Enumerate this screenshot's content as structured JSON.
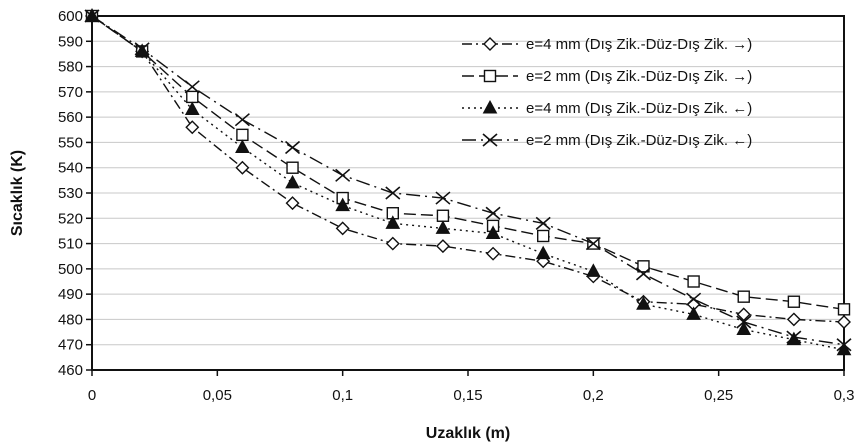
{
  "chart_data": {
    "type": "line",
    "title": "",
    "xlabel": "Uzaklık (m)",
    "ylabel": "Sıcaklık (K)",
    "xlim": [
      0,
      0.3
    ],
    "ylim": [
      460,
      600
    ],
    "x_ticks": [
      0,
      0.05,
      0.1,
      0.15,
      0.2,
      0.25,
      0.3
    ],
    "x_tick_labels": [
      "0",
      "0,05",
      "0,1",
      "0,15",
      "0,2",
      "0,25",
      "0,3"
    ],
    "y_ticks": [
      460,
      470,
      480,
      490,
      500,
      510,
      520,
      530,
      540,
      550,
      560,
      570,
      580,
      590,
      600
    ],
    "y_tick_labels": [
      "460",
      "470",
      "480",
      "490",
      "500",
      "510",
      "520",
      "530",
      "540",
      "550",
      "560",
      "570",
      "580",
      "590",
      "600"
    ],
    "grid": "horizontal",
    "legend_position": "top-right",
    "x": [
      0,
      0.02,
      0.04,
      0.06,
      0.08,
      0.1,
      0.12,
      0.14,
      0.16,
      0.18,
      0.2,
      0.22,
      0.24,
      0.26,
      0.28,
      0.3
    ],
    "series": [
      {
        "name": "e=4 mm (Dış Zik.-Düz-Dış Zik. →)",
        "marker": "diamond",
        "dash": "dash-dot",
        "values": [
          600,
          586,
          556,
          540,
          526,
          516,
          510,
          509,
          506,
          503,
          497,
          487,
          486,
          482,
          480,
          479
        ]
      },
      {
        "name": "e=2 mm (Dış Zik.-Düz-Dış Zik. →)",
        "marker": "square",
        "dash": "long-dash",
        "values": [
          600,
          586,
          568,
          553,
          540,
          528,
          522,
          521,
          517,
          513,
          510,
          501,
          495,
          489,
          487,
          484
        ]
      },
      {
        "name": "e=4 mm (Dış Zik.-Düz-Dış Zik. ←)",
        "marker": "triangle",
        "dash": "dotted",
        "values": [
          600,
          586,
          563,
          548,
          534,
          525,
          518,
          516,
          514,
          506,
          499,
          486,
          482,
          476,
          472,
          468
        ]
      },
      {
        "name": "e=2 mm (Dış Zik.-Düz-Dış Zik. ←)",
        "marker": "x",
        "dash": "long-dash-dot",
        "values": [
          600,
          587,
          572,
          559,
          548,
          537,
          530,
          528,
          522,
          518,
          510,
          498,
          488,
          479,
          473,
          470
        ]
      }
    ],
    "colors": {
      "line": "#111111",
      "grid": "#c8c8c8",
      "frame": "#111111",
      "background": "#ffffff"
    }
  }
}
